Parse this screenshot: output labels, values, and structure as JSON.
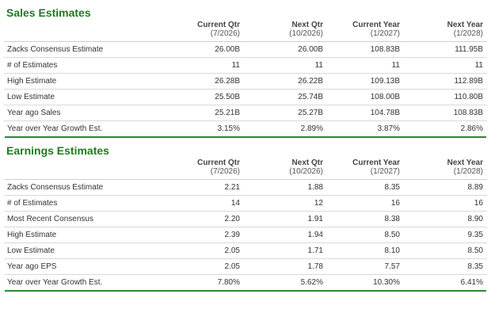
{
  "sales": {
    "title": "Sales Estimates",
    "columns": [
      {
        "line1": "Current Qtr",
        "line2": "(7/2026)"
      },
      {
        "line1": "Next Qtr",
        "line2": "(10/2026)"
      },
      {
        "line1": "Current Year",
        "line2": "(1/2027)"
      },
      {
        "line1": "Next Year",
        "line2": "(1/2028)"
      }
    ],
    "rows": [
      {
        "label": "Zacks Consensus Estimate",
        "values": [
          "26.00B",
          "26.00B",
          "108.83B",
          "111.95B"
        ]
      },
      {
        "label": "# of Estimates",
        "values": [
          "11",
          "11",
          "11",
          "11"
        ]
      },
      {
        "label": "High Estimate",
        "values": [
          "26.28B",
          "26.22B",
          "109.13B",
          "112.89B"
        ]
      },
      {
        "label": "Low Estimate",
        "values": [
          "25.50B",
          "25.74B",
          "108.00B",
          "110.80B"
        ]
      },
      {
        "label": "Year ago Sales",
        "values": [
          "25.21B",
          "25.27B",
          "104.78B",
          "108.83B"
        ]
      },
      {
        "label": "Year over Year Growth Est.",
        "values": [
          "3.15%",
          "2.89%",
          "3.87%",
          "2.86%"
        ]
      }
    ]
  },
  "earnings": {
    "title": "Earnings Estimates",
    "columns": [
      {
        "line1": "Current Qtr",
        "line2": "(7/2026)"
      },
      {
        "line1": "Next Qtr",
        "line2": "(10/2026)"
      },
      {
        "line1": "Current Year",
        "line2": "(1/2027)"
      },
      {
        "line1": "Next Year",
        "line2": "(1/2028)"
      }
    ],
    "rows": [
      {
        "label": "Zacks Consensus Estimate",
        "values": [
          "2.21",
          "1.88",
          "8.35",
          "8.89"
        ]
      },
      {
        "label": "# of Estimates",
        "values": [
          "14",
          "12",
          "16",
          "16"
        ]
      },
      {
        "label": "Most Recent Consensus",
        "values": [
          "2.20",
          "1.91",
          "8.38",
          "8.90"
        ]
      },
      {
        "label": "High Estimate",
        "values": [
          "2.39",
          "1.94",
          "8.50",
          "9.35"
        ]
      },
      {
        "label": "Low Estimate",
        "values": [
          "2.05",
          "1.71",
          "8.10",
          "8.50"
        ]
      },
      {
        "label": "Year ago EPS",
        "values": [
          "2.05",
          "1.78",
          "7.57",
          "8.35"
        ]
      },
      {
        "label": "Year over Year Growth Est.",
        "values": [
          "7.80%",
          "5.62%",
          "10.30%",
          "6.41%"
        ]
      }
    ]
  },
  "colors": {
    "title": "#1e7b1e",
    "rule": "#2a8a2a"
  }
}
